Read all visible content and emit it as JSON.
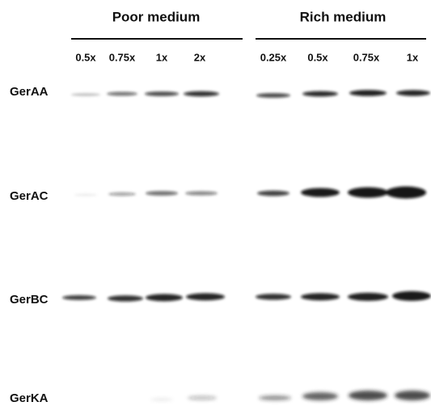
{
  "groups": [
    {
      "title": "Poor medium",
      "lanes": [
        "0.5x",
        "0.75x",
        "1x",
        "2x"
      ]
    },
    {
      "title": "Rich medium",
      "lanes": [
        "0.25x",
        "0.5x",
        "0.75x",
        "1x"
      ]
    }
  ],
  "rows": [
    "GerAA",
    "GerAC",
    "GerBC",
    "GerKA"
  ]
}
